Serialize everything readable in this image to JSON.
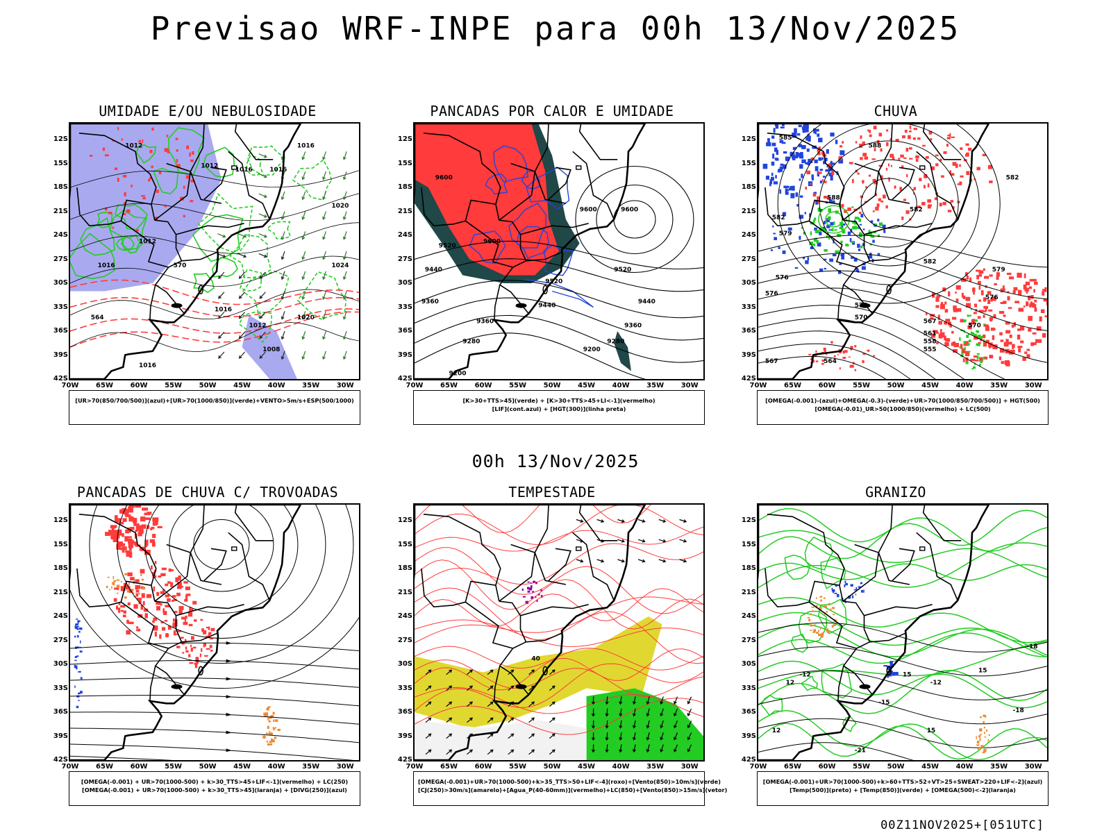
{
  "title": "Previsao WRF-INPE  para 00h 13/Nov/2025",
  "mid_title": "00h 13/Nov/2025",
  "footer": "00Z11NOV2025+[051UTC]",
  "axes": {
    "lat_labels": [
      "12S",
      "15S",
      "18S",
      "21S",
      "24S",
      "27S",
      "30S",
      "33S",
      "36S",
      "39S",
      "42S"
    ],
    "lon_labels": [
      "70W",
      "65W",
      "60W",
      "55W",
      "50W",
      "45W",
      "40W",
      "35W",
      "30W"
    ]
  },
  "colors": {
    "blue_fill": "#a9a9f0",
    "green": "#22cc22",
    "red": "#ff3b3b",
    "dark_teal": "#204848",
    "blue": "#2244dd",
    "orange": "#ee8833",
    "yellow": "#e0d830",
    "purple": "#8800aa"
  },
  "panels": [
    {
      "id": "umidade",
      "title": "UMIDADE E/OU NEBULOSIDADE",
      "legend": [
        "[UR>70(850/700/500)](azul)+[UR>70(1000/850)](verde)+VENTO>5m/s+ESP(500/1000)"
      ],
      "contour_labels": [
        {
          "text": "1012",
          "lon": -62,
          "lat": -13
        },
        {
          "text": "1012",
          "lon": -51,
          "lat": -15.5
        },
        {
          "text": "1016",
          "lon": -46,
          "lat": -16
        },
        {
          "text": "1016",
          "lon": -41,
          "lat": -16
        },
        {
          "text": "1016",
          "lon": -37,
          "lat": -13
        },
        {
          "text": "1020",
          "lon": -32,
          "lat": -20.5
        },
        {
          "text": "1024",
          "lon": -32,
          "lat": -28
        },
        {
          "text": "1012",
          "lon": -60,
          "lat": -25
        },
        {
          "text": "1016",
          "lon": -66,
          "lat": -28
        },
        {
          "text": "1016",
          "lon": -49,
          "lat": -33.5
        },
        {
          "text": "1020",
          "lon": -37,
          "lat": -34.5
        },
        {
          "text": "1012",
          "lon": -44,
          "lat": -35.5
        },
        {
          "text": "1008",
          "lon": -42,
          "lat": -38.5
        },
        {
          "text": "1016",
          "lon": -60,
          "lat": -40.5
        },
        {
          "text": "570",
          "lon": -55,
          "lat": -28
        },
        {
          "text": "564",
          "lon": -67,
          "lat": -34.5
        }
      ]
    },
    {
      "id": "pancadas-calor",
      "title": "PANCADAS POR CALOR E UMIDADE",
      "legend": [
        "[K>30+TTS>45](verde) + [K>30+TTS>45+LI<-1](vermelho)",
        "[LIF](cont.azul) + [HGT(300)](linha preta)"
      ],
      "contour_labels": [
        {
          "text": "9600",
          "lon": -67,
          "lat": -17
        },
        {
          "text": "9600",
          "lon": -60,
          "lat": -25
        },
        {
          "text": "9600",
          "lon": -46,
          "lat": -21
        },
        {
          "text": "9600",
          "lon": -40,
          "lat": -21
        },
        {
          "text": "9520",
          "lon": -66.5,
          "lat": -25.5
        },
        {
          "text": "9520",
          "lon": -51,
          "lat": -30
        },
        {
          "text": "9520",
          "lon": -41,
          "lat": -28.5
        },
        {
          "text": "9440",
          "lon": -68.5,
          "lat": -28.5
        },
        {
          "text": "9440",
          "lon": -52,
          "lat": -33
        },
        {
          "text": "9440",
          "lon": -37.5,
          "lat": -32.5
        },
        {
          "text": "9360",
          "lon": -69,
          "lat": -32.5
        },
        {
          "text": "9360",
          "lon": -61,
          "lat": -35
        },
        {
          "text": "9360",
          "lon": -39.5,
          "lat": -35.5
        },
        {
          "text": "9280",
          "lon": -63,
          "lat": -37.5
        },
        {
          "text": "9280",
          "lon": -42,
          "lat": -37.5
        },
        {
          "text": "9200",
          "lon": -45.5,
          "lat": -38.5
        },
        {
          "text": "9200",
          "lon": -65,
          "lat": -41.5
        }
      ]
    },
    {
      "id": "chuva",
      "title": "CHUVA",
      "legend": [
        "[OMEGA(-0.001)-(azul)+OMEGA(-0.3)-(verde)+UR>70(1000/850/700/500)] + HGT(500)",
        "[OMEGA(-0.01)_UR>50(1000/850)(vermelho) + LC(500)"
      ],
      "contour_labels": [
        {
          "text": "585",
          "lon": -67,
          "lat": -12
        },
        {
          "text": "588",
          "lon": -54,
          "lat": -13
        },
        {
          "text": "588",
          "lon": -60,
          "lat": -19.5
        },
        {
          "text": "582",
          "lon": -68,
          "lat": -22
        },
        {
          "text": "582",
          "lon": -48,
          "lat": -21
        },
        {
          "text": "582",
          "lon": -34,
          "lat": -17
        },
        {
          "text": "579",
          "lon": -67,
          "lat": -24
        },
        {
          "text": "582",
          "lon": -46,
          "lat": -27.5
        },
        {
          "text": "579",
          "lon": -36,
          "lat": -28.5
        },
        {
          "text": "576",
          "lon": -67.5,
          "lat": -29.5
        },
        {
          "text": "576",
          "lon": -69,
          "lat": -31.5
        },
        {
          "text": "576",
          "lon": -37,
          "lat": -32
        },
        {
          "text": "573",
          "lon": -56,
          "lat": -33
        },
        {
          "text": "570",
          "lon": -56,
          "lat": -34.5
        },
        {
          "text": "570",
          "lon": -39.5,
          "lat": -35.5
        },
        {
          "text": "567",
          "lon": -46,
          "lat": -35
        },
        {
          "text": "561",
          "lon": -46,
          "lat": -36.5
        },
        {
          "text": "558",
          "lon": -46,
          "lat": -37.5
        },
        {
          "text": "555",
          "lon": -46,
          "lat": -38.5
        },
        {
          "text": "567",
          "lon": -69,
          "lat": -40
        },
        {
          "text": "564",
          "lon": -60.5,
          "lat": -40
        }
      ]
    },
    {
      "id": "trovoadas",
      "title": "PANCADAS DE CHUVA C/ TROVOADAS",
      "legend": [
        "[OMEGA(-0.001) + UR>70(1000-500) + k>30_TTS>45+LIF<-1](vermelho) + LC(250)",
        "[OMEGA(-0.001) + UR>70(1000-500) + k>30_TTS>45](laranja) + [DIVG(250)](azul)"
      ],
      "contour_labels": []
    },
    {
      "id": "tempestade",
      "title": "TEMPESTADE",
      "legend": [
        "[OMEGA(-0.001)+UR>70(1000-500)+k>35_TTS>50+LIF<-4](roxo)+[Vento(850)>10m/s](verde)",
        "[CJ(250)>30m/s](amarelo)+[Agua_P(40-60mm)](vermelho)+LC(850)+[Vento(850)>15m/s](vetor)"
      ],
      "contour_labels": [
        {
          "text": "40",
          "lon": -53,
          "lat": -29.5
        }
      ]
    },
    {
      "id": "granizo",
      "title": "GRANIZO",
      "legend": [
        "[OMEGA(-0.001)+UR>70(1000-500)+k>60+TTS>52+VT>25+SWEAT>220+LIF<-2](azul)",
        "[Temp(500)](preto) + [Temp(850)](verde) + [OMEGA(500)<-2](laranja)"
      ],
      "contour_labels": [
        {
          "text": "-12",
          "lon": -64,
          "lat": -31.5
        },
        {
          "text": "12",
          "lon": -66,
          "lat": -32.5
        },
        {
          "text": "-15",
          "lon": -52.5,
          "lat": -35
        },
        {
          "text": "15",
          "lon": -49,
          "lat": -31.5
        },
        {
          "text": "-12",
          "lon": -45,
          "lat": -32.5
        },
        {
          "text": "15",
          "lon": -45.5,
          "lat": -38.5
        },
        {
          "text": "-18",
          "lon": -33,
          "lat": -36
        },
        {
          "text": "-21",
          "lon": -56,
          "lat": -41
        },
        {
          "text": "15",
          "lon": -38,
          "lat": -31
        },
        {
          "text": "12",
          "lon": -68,
          "lat": -38.5
        },
        {
          "text": "-18",
          "lon": -31,
          "lat": -28
        }
      ]
    }
  ]
}
